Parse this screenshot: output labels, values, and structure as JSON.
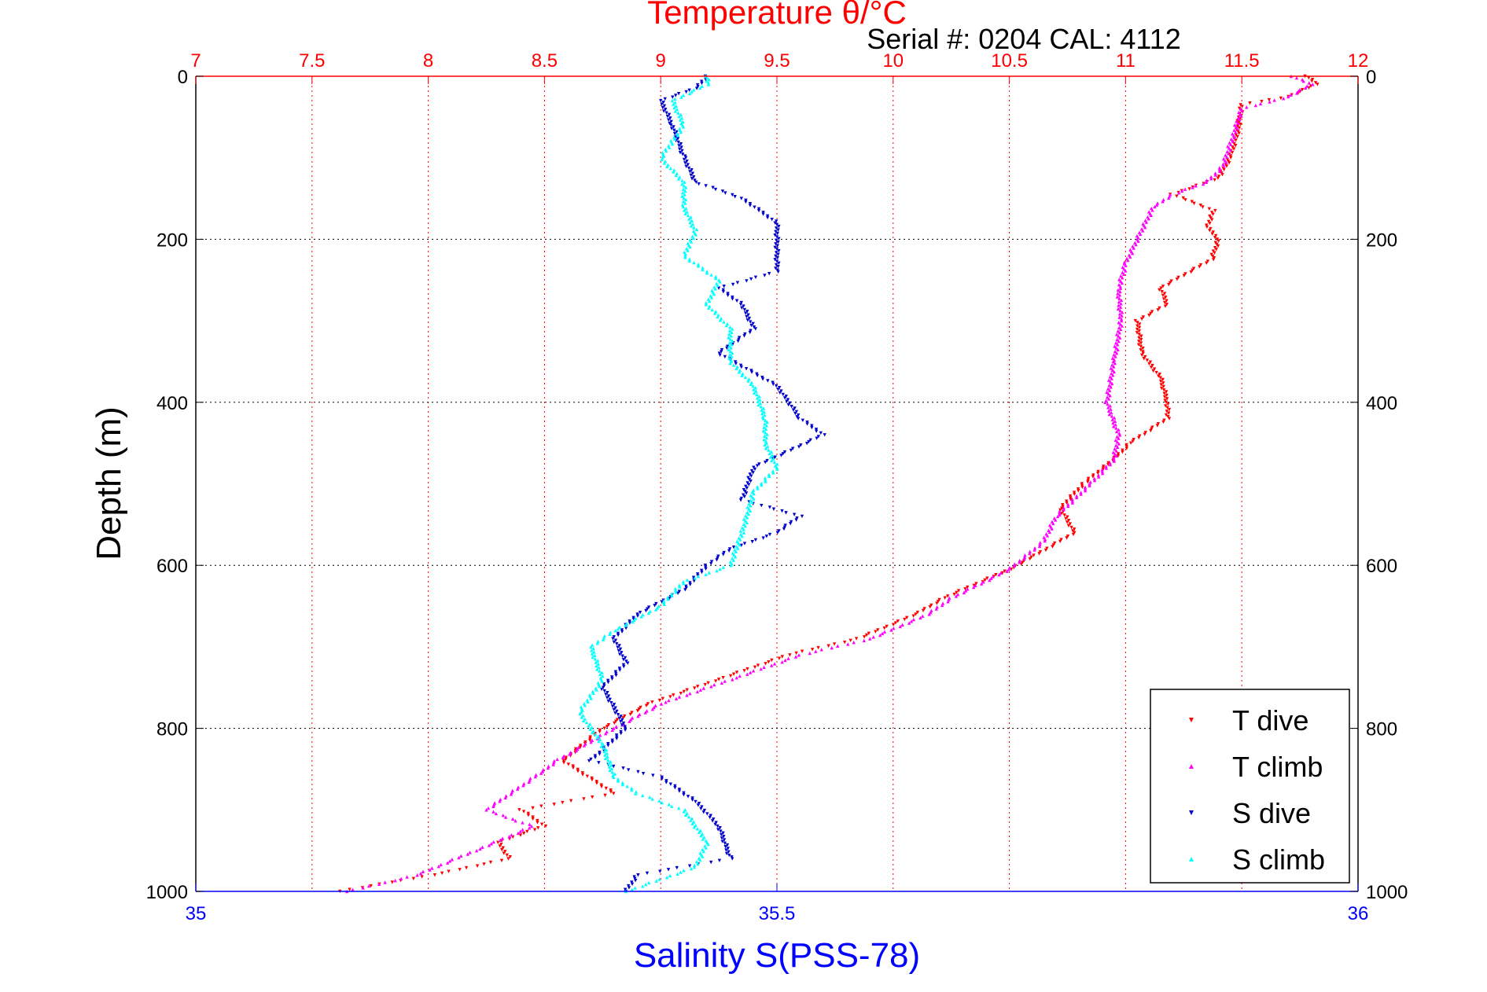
{
  "chart_data": {
    "type": "scatter",
    "title_top": "Temperature θ/°C",
    "subtitle": "Serial #: 0204  CAL: 4112",
    "xlabel_bottom": "Salinity S(PSS-78)",
    "ylabel": "Depth (m)",
    "x_top": {
      "lim": [
        7,
        12
      ],
      "ticks": [
        7,
        7.5,
        8,
        8.5,
        9,
        9.5,
        10,
        10.5,
        11,
        11.5,
        12
      ],
      "tick_labels": [
        "7",
        "7.5",
        "8",
        "8.5",
        "9",
        "9.5",
        "10",
        "10.5",
        "11",
        "11.5",
        "12"
      ]
    },
    "x_bottom": {
      "lim": [
        35,
        36
      ],
      "ticks": [
        35,
        35.5,
        36
      ],
      "tick_labels": [
        "35",
        "35.5",
        "36"
      ]
    },
    "y": {
      "lim": [
        0,
        1000
      ],
      "reversed": true,
      "ticks": [
        0,
        200,
        400,
        600,
        800,
        1000
      ],
      "tick_labels": [
        "0",
        "200",
        "400",
        "600",
        "800",
        "1000"
      ]
    },
    "grid": true,
    "legend_position": "bottom-right",
    "colors": {
      "temp_axis": "#ff0000",
      "sal_axis": "#0000ff",
      "t_dive": "#ff0000",
      "t_climb": "#ff00ff",
      "s_dive": "#0000cc",
      "s_climb": "#00ffff"
    },
    "series": [
      {
        "name": "T dive",
        "axis": "top",
        "marker": "triangle-down",
        "points": [
          [
            11.78,
            0
          ],
          [
            11.82,
            10
          ],
          [
            11.7,
            25
          ],
          [
            11.5,
            35
          ],
          [
            11.48,
            70
          ],
          [
            11.45,
            100
          ],
          [
            11.4,
            125
          ],
          [
            11.2,
            145
          ],
          [
            11.38,
            165
          ],
          [
            11.35,
            185
          ],
          [
            11.4,
            200
          ],
          [
            11.37,
            225
          ],
          [
            11.15,
            260
          ],
          [
            11.18,
            280
          ],
          [
            11.05,
            300
          ],
          [
            11.07,
            340
          ],
          [
            11.15,
            370
          ],
          [
            11.18,
            400
          ],
          [
            11.18,
            420
          ],
          [
            11.02,
            450
          ],
          [
            10.95,
            470
          ],
          [
            10.82,
            500
          ],
          [
            10.72,
            530
          ],
          [
            10.78,
            560
          ],
          [
            10.6,
            590
          ],
          [
            10.5,
            605
          ],
          [
            10.22,
            640
          ],
          [
            10.1,
            660
          ],
          [
            9.85,
            690
          ],
          [
            9.55,
            710
          ],
          [
            9.25,
            740
          ],
          [
            8.95,
            770
          ],
          [
            8.75,
            800
          ],
          [
            8.58,
            840
          ],
          [
            8.8,
            880
          ],
          [
            8.4,
            900
          ],
          [
            8.5,
            920
          ],
          [
            8.3,
            940
          ],
          [
            8.35,
            960
          ],
          [
            8.02,
            980
          ],
          [
            7.62,
            1000
          ]
        ]
      },
      {
        "name": "T climb",
        "axis": "top",
        "marker": "triangle-up",
        "points": [
          [
            11.72,
            0
          ],
          [
            11.8,
            10
          ],
          [
            11.7,
            25
          ],
          [
            11.5,
            40
          ],
          [
            11.46,
            75
          ],
          [
            11.42,
            110
          ],
          [
            11.35,
            130
          ],
          [
            11.2,
            145
          ],
          [
            11.12,
            160
          ],
          [
            11.05,
            200
          ],
          [
            11.0,
            230
          ],
          [
            10.97,
            260
          ],
          [
            10.98,
            300
          ],
          [
            10.95,
            350
          ],
          [
            10.92,
            400
          ],
          [
            10.97,
            440
          ],
          [
            10.95,
            470
          ],
          [
            10.85,
            500
          ],
          [
            10.7,
            540
          ],
          [
            10.65,
            570
          ],
          [
            10.5,
            605
          ],
          [
            10.25,
            640
          ],
          [
            10.15,
            660
          ],
          [
            9.9,
            690
          ],
          [
            9.6,
            710
          ],
          [
            9.3,
            740
          ],
          [
            9.0,
            770
          ],
          [
            8.8,
            800
          ],
          [
            8.55,
            840
          ],
          [
            8.48,
            855
          ],
          [
            8.25,
            900
          ],
          [
            8.45,
            920
          ],
          [
            8.2,
            950
          ],
          [
            7.95,
            980
          ],
          [
            7.65,
            1000
          ]
        ]
      },
      {
        "name": "S dive",
        "axis": "bottom",
        "marker": "triangle-down",
        "points": [
          [
            35.44,
            0
          ],
          [
            35.43,
            15
          ],
          [
            35.4,
            30
          ],
          [
            35.41,
            60
          ],
          [
            35.42,
            100
          ],
          [
            35.43,
            130
          ],
          [
            35.47,
            150
          ],
          [
            35.5,
            180
          ],
          [
            35.5,
            240
          ],
          [
            35.45,
            260
          ],
          [
            35.47,
            280
          ],
          [
            35.48,
            310
          ],
          [
            35.45,
            340
          ],
          [
            35.5,
            380
          ],
          [
            35.52,
            420
          ],
          [
            35.54,
            440
          ],
          [
            35.48,
            480
          ],
          [
            35.47,
            520
          ],
          [
            35.52,
            540
          ],
          [
            35.5,
            560
          ],
          [
            35.46,
            580
          ],
          [
            35.44,
            600
          ],
          [
            35.42,
            630
          ],
          [
            35.38,
            660
          ],
          [
            35.36,
            690
          ],
          [
            35.37,
            720
          ],
          [
            35.35,
            750
          ],
          [
            35.37,
            800
          ],
          [
            35.34,
            840
          ],
          [
            35.4,
            860
          ],
          [
            35.43,
            890
          ],
          [
            35.45,
            920
          ],
          [
            35.46,
            960
          ],
          [
            35.38,
            980
          ],
          [
            35.37,
            1000
          ]
        ]
      },
      {
        "name": "S climb",
        "axis": "bottom",
        "marker": "triangle-up",
        "points": [
          [
            35.44,
            0
          ],
          [
            35.44,
            10
          ],
          [
            35.41,
            30
          ],
          [
            35.42,
            60
          ],
          [
            35.4,
            100
          ],
          [
            35.42,
            130
          ],
          [
            35.42,
            160
          ],
          [
            35.43,
            190
          ],
          [
            35.42,
            220
          ],
          [
            35.45,
            250
          ],
          [
            35.44,
            280
          ],
          [
            35.46,
            310
          ],
          [
            35.46,
            350
          ],
          [
            35.48,
            380
          ],
          [
            35.49,
            420
          ],
          [
            35.49,
            450
          ],
          [
            35.5,
            480
          ],
          [
            35.48,
            510
          ],
          [
            35.47,
            560
          ],
          [
            35.46,
            600
          ],
          [
            35.42,
            620
          ],
          [
            35.4,
            650
          ],
          [
            35.36,
            680
          ],
          [
            35.34,
            700
          ],
          [
            35.35,
            740
          ],
          [
            35.33,
            780
          ],
          [
            35.35,
            820
          ],
          [
            35.36,
            860
          ],
          [
            35.38,
            880
          ],
          [
            35.42,
            900
          ],
          [
            35.44,
            940
          ],
          [
            35.43,
            970
          ],
          [
            35.37,
            1000
          ]
        ]
      }
    ]
  }
}
